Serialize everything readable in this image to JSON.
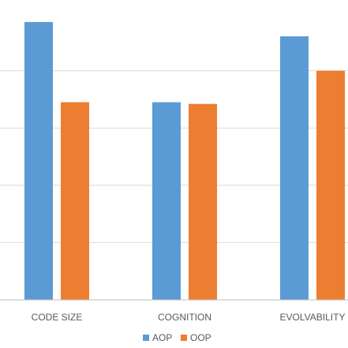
{
  "chart_data": {
    "type": "bar",
    "categories": [
      "CODE SIZE",
      "COGNITION",
      "EVOLVABILITY"
    ],
    "series": [
      {
        "name": "AOP",
        "color": "#5B9BD5",
        "values": [
          4.85,
          3.45,
          4.6
        ]
      },
      {
        "name": "OOP",
        "color": "#ED7D31",
        "values": [
          3.45,
          3.42,
          4.0
        ]
      }
    ],
    "ylim": [
      0,
      5
    ],
    "grid": true,
    "legend_position": "bottom",
    "gridline_color": "#d9d9d9",
    "axis_color": "#bfbfbf"
  }
}
